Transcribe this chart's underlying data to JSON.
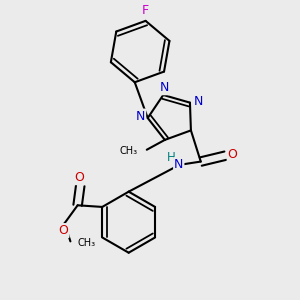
{
  "background_color": "#ebebeb",
  "atom_colors": {
    "C": "#000000",
    "N": "#0000cc",
    "O": "#cc0000",
    "F": "#cc00cc",
    "H": "#008080"
  },
  "line_color": "#000000",
  "line_width": 1.5,
  "font_size": 8.5
}
